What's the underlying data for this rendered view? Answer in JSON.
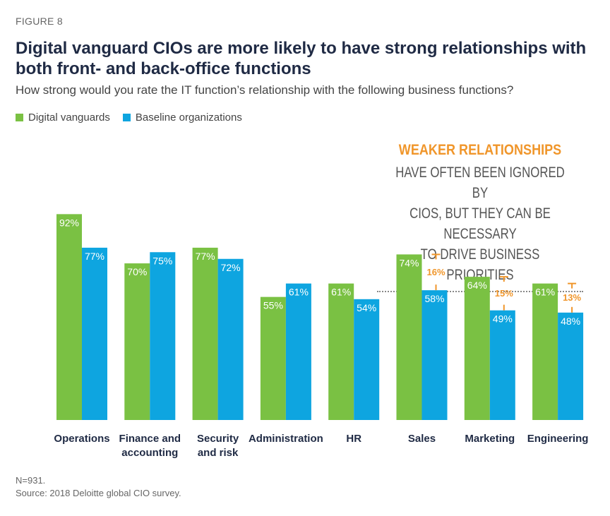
{
  "figure_label": "FIGURE 8",
  "title": "Digital vanguard CIOs are more likely to have strong relationships with both front- and back-office functions",
  "subtitle": "How strong would you rate the IT function’s relationship with the following business functions?",
  "legend": [
    {
      "label": "Digital vanguards",
      "color": "#7ac143"
    },
    {
      "label": "Baseline organizations",
      "color": "#0ea5e0"
    }
  ],
  "callout": {
    "heading": "WEAKER RELATIONSHIPS",
    "lines": [
      "HAVE OFTEN BEEN IGNORED BY",
      "CIOS, BUT THEY CAN BE NECESSARY",
      "TO DRIVE BUSINESS PRIORITIES"
    ]
  },
  "chart_data": {
    "type": "bar",
    "categories": [
      "Operations",
      "Finance and\naccounting",
      "Security\nand risk",
      "Administration",
      "HR",
      "Sales",
      "Marketing",
      "Engineering"
    ],
    "series": [
      {
        "name": "Digital vanguards",
        "values": [
          92,
          70,
          77,
          55,
          61,
          74,
          64,
          61
        ],
        "color": "#7ac143"
      },
      {
        "name": "Baseline organizations",
        "values": [
          77,
          75,
          72,
          61,
          54,
          58,
          49,
          48
        ],
        "color": "#0ea5e0"
      }
    ],
    "value_suffix": "%",
    "gaps": [
      {
        "category": "Sales",
        "label": "16%"
      },
      {
        "category": "Marketing",
        "label": "15%"
      },
      {
        "category": "Engineering",
        "label": "13%"
      }
    ],
    "gap_color": "#f0962b",
    "ylim": [
      0,
      100
    ],
    "grid": false
  },
  "footnote": {
    "n": "N=931.",
    "source": "Source: 2018 Deloitte global CIO survey."
  }
}
